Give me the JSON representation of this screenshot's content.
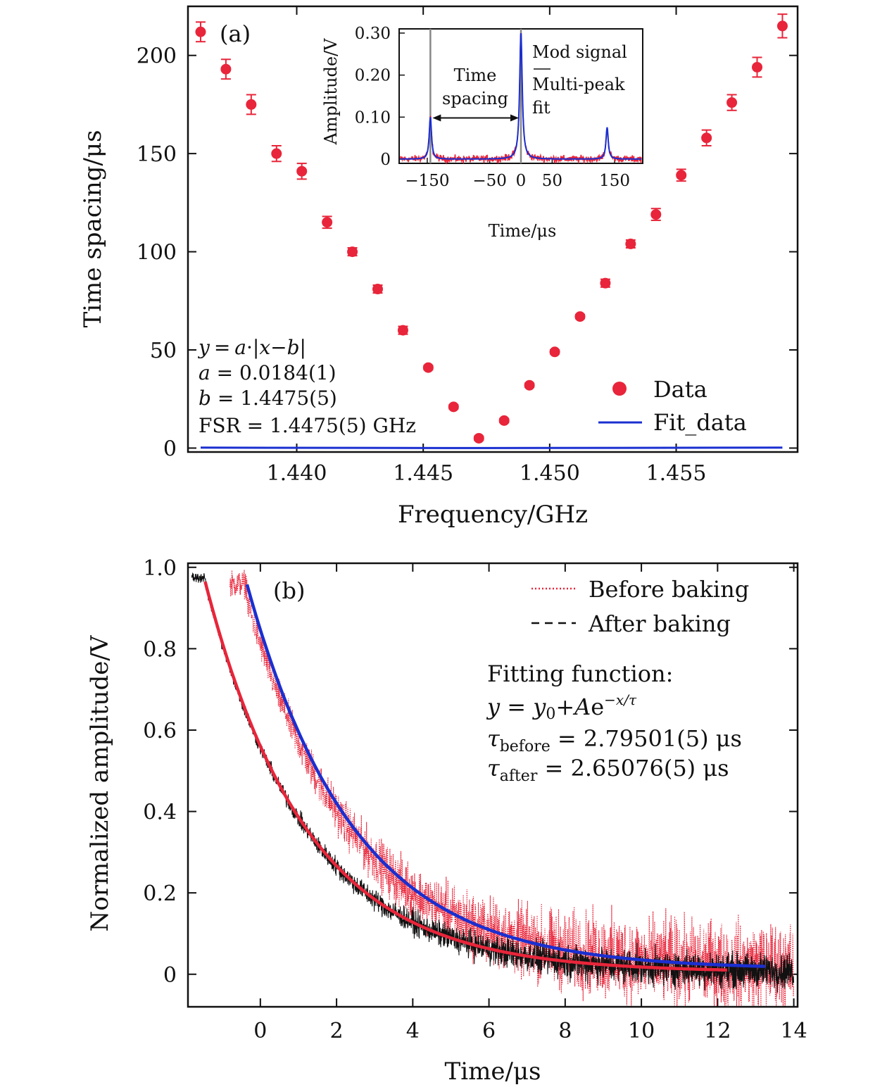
{
  "chart_data": [
    {
      "id": "a",
      "type": "scatter",
      "panel_label": "(a)",
      "xlabel": "Frequency/GHz",
      "ylabel": "Time spacing/μs",
      "xlim": [
        1.4357,
        1.4598
      ],
      "ylim": [
        -2,
        225
      ],
      "xticks": [
        1.44,
        1.445,
        1.45,
        1.455
      ],
      "xtick_labels": [
        "1.440",
        "1.445",
        "1.450",
        "1.455"
      ],
      "yticks": [
        0,
        50,
        100,
        150,
        200
      ],
      "ytick_labels": [
        "0",
        "50",
        "100",
        "150",
        "200"
      ],
      "series": [
        {
          "name": "Data",
          "kind": "points_with_errorbars",
          "color": "#e8253a",
          "x": [
            1.4362,
            1.4372,
            1.4382,
            1.4392,
            1.4402,
            1.4412,
            1.4422,
            1.4432,
            1.4442,
            1.4452,
            1.4462,
            1.4472,
            1.4482,
            1.4492,
            1.4502,
            1.4512,
            1.4522,
            1.4532,
            1.4542,
            1.4552,
            1.4562,
            1.4572,
            1.4582,
            1.4592
          ],
          "y": [
            212,
            193,
            175,
            150,
            141,
            115,
            100,
            81,
            60,
            41,
            21,
            5,
            14,
            32,
            49,
            67,
            84,
            104,
            119,
            139,
            158,
            176,
            194,
            215
          ],
          "err": [
            5,
            5,
            5,
            4,
            4,
            3,
            2,
            2,
            2,
            1,
            1,
            1,
            1,
            1,
            1,
            1,
            2,
            2,
            3,
            3,
            4,
            4,
            5,
            6
          ]
        },
        {
          "name": "Fit_data",
          "kind": "line",
          "color": "#1a2fd0",
          "model": "y = a*|x-b|*1000",
          "a": 0.0184,
          "b": 1.4475,
          "x_range": [
            1.4362,
            1.4592
          ]
        }
      ],
      "legend": {
        "placement": "bottom-right",
        "entries": [
          "Data",
          "Fit_data"
        ]
      },
      "annotations": {
        "formula_math": [
          "y",
          "=",
          "a",
          "·|",
          "x",
          "−",
          "b",
          "|"
        ],
        "a_line": [
          "a",
          " = 0.0184(1)"
        ],
        "b_line": [
          "b",
          " = 1.4475(5)"
        ],
        "fsr_line": "FSR = 1.4475(5)  GHz"
      },
      "inset": {
        "type": "line",
        "xlabel": "Time/μs",
        "ylabel": "Amplitude/V",
        "xlim": [
          -195,
          195
        ],
        "ylim": [
          -0.01,
          0.31
        ],
        "xticks": [
          -150,
          -50,
          0,
          50,
          150
        ],
        "xtick_labels": [
          "−150",
          "−50",
          "0",
          "50",
          "150"
        ],
        "yticks": [
          0,
          0.1,
          0.2,
          0.3
        ],
        "ytick_labels": [
          "0",
          "0.10",
          "0.20",
          "0.30"
        ],
        "peaks": [
          {
            "t": -145,
            "height": 0.1,
            "width": 2.2
          },
          {
            "t": 0,
            "height": 0.3,
            "width": 2.5
          },
          {
            "t": 138,
            "height": 0.075,
            "width": 2.2
          }
        ],
        "vertical_markers_t": [
          -145,
          0
        ],
        "spacing_arrow_y": 0.098,
        "spacing_label": [
          "Time",
          "spacing"
        ],
        "legend": [
          "Mod signal",
          "Multi-peak",
          "fit"
        ],
        "series_colors": {
          "Mod signal": "#e8253a",
          "Multi-peak fit": "#1a2fd0"
        }
      }
    },
    {
      "id": "b",
      "type": "line",
      "panel_label": "(b)",
      "xlabel": "Time/μs",
      "ylabel": "Normalized amplitude/V",
      "xlim": [
        -1.9,
        14.1
      ],
      "ylim": [
        -0.08,
        1.01
      ],
      "xticks": [
        0,
        2,
        4,
        6,
        8,
        10,
        12,
        14
      ],
      "xtick_labels": [
        "0",
        "2",
        "4",
        "6",
        "8",
        "10",
        "12",
        "14"
      ],
      "yticks": [
        0,
        0.2,
        0.4,
        0.6,
        0.8,
        1.0
      ],
      "ytick_labels": [
        "0",
        "0.2",
        "0.4",
        "0.6",
        "0.8",
        "1.0"
      ],
      "series": [
        {
          "name": "Before baking",
          "style": "dotted",
          "color": "#e8253a",
          "x_start": -0.8,
          "x_end": 14.0,
          "y0": 0.012,
          "A": 0.905,
          "t0": -0.35,
          "tau": 2.79501,
          "noise": 0.03,
          "pre_level": 0.96
        },
        {
          "name": "After baking",
          "style": "dashed",
          "color": "#111111",
          "x_start": -1.8,
          "x_end": 14.0,
          "y0": 0.005,
          "A": 0.955,
          "t0": -1.45,
          "tau": 2.65076,
          "noise": 0.012,
          "pre_level": 0.975
        },
        {
          "name": "fit-before",
          "style": "solid",
          "color": "#1a2fd0",
          "x_start": -0.35,
          "x_end": 13.3,
          "y0": 0.012,
          "A": 0.946,
          "t0": -0.35,
          "tau": 2.79501
        },
        {
          "name": "fit-after",
          "style": "solid",
          "color": "#e8253a",
          "x_start": -1.45,
          "x_end": 12.3,
          "y0": 0.005,
          "A": 0.96,
          "t0": -1.45,
          "tau": 2.65076
        }
      ],
      "legend": {
        "placement": "top-right",
        "entries": [
          "Before baking",
          "After baking"
        ]
      },
      "annotations": {
        "title": "Fitting function:",
        "formula": [
          "y",
          " = ",
          "y",
          "0",
          "+",
          "A",
          "e",
          "−x/τ"
        ],
        "tau_before": [
          "τ",
          "before",
          " = 2.79501(5)  μs"
        ],
        "tau_after": [
          "τ",
          "after",
          " = 2.65076(5)  μs"
        ]
      }
    }
  ]
}
